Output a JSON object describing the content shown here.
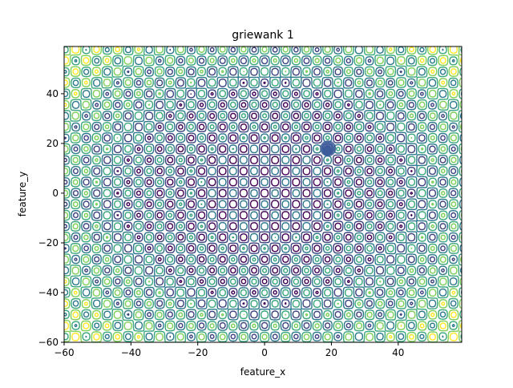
{
  "chart_data": {
    "type": "contour",
    "title": "griewank 1",
    "xlabel": "feature_x",
    "ylabel": "feature_y",
    "xlim": [
      -60,
      59
    ],
    "ylim": [
      -60,
      59
    ],
    "x_ticks": [
      {
        "value": -60,
        "label": "−60"
      },
      {
        "value": -40,
        "label": "−40"
      },
      {
        "value": -20,
        "label": "−20"
      },
      {
        "value": 0,
        "label": "0"
      },
      {
        "value": 20,
        "label": "20"
      },
      {
        "value": 40,
        "label": "40"
      }
    ],
    "y_ticks": [
      {
        "value": -60,
        "label": "−60"
      },
      {
        "value": -40,
        "label": "−40"
      },
      {
        "value": -20,
        "label": "−20"
      },
      {
        "value": 0,
        "label": "0"
      },
      {
        "value": 20,
        "label": "20"
      },
      {
        "value": 40,
        "label": "40"
      }
    ],
    "marker": {
      "x": 19,
      "y": 18,
      "color": "#3b5b9a"
    },
    "colormap": [
      "#440154",
      "#3b528b",
      "#21918c",
      "#5ec962",
      "#fde725"
    ],
    "grid": false,
    "legend": "none"
  }
}
